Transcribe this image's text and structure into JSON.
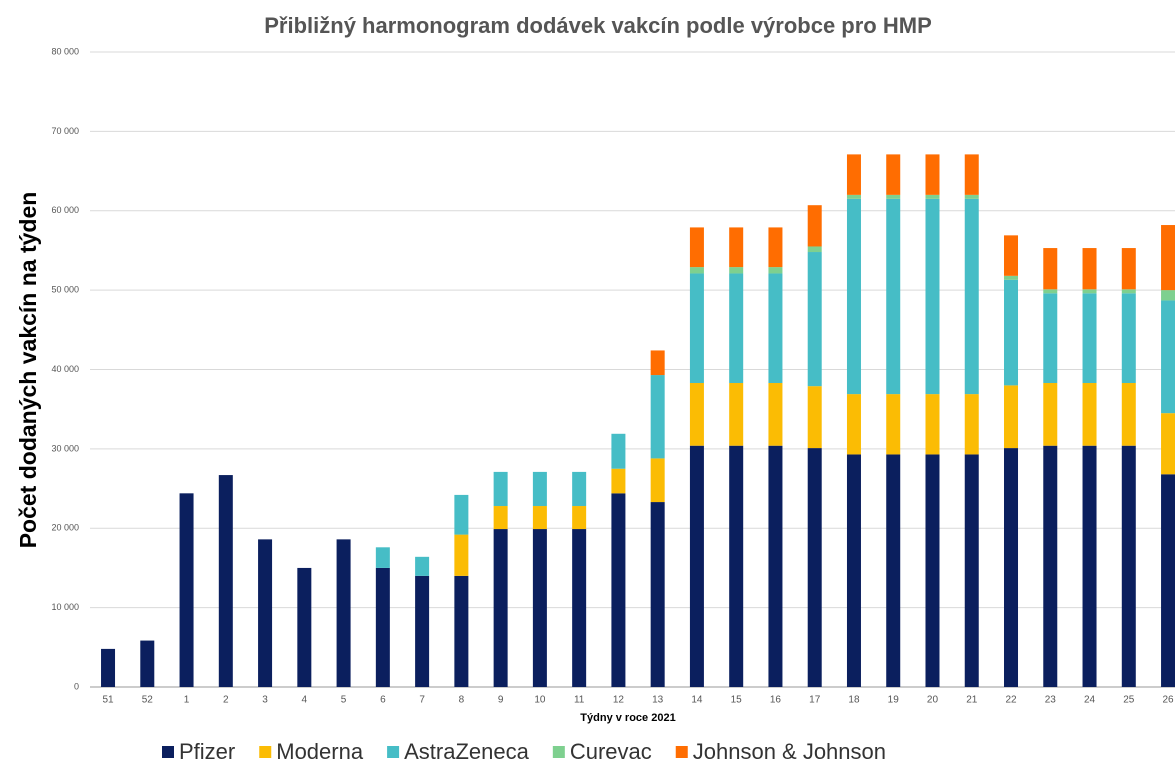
{
  "chart_data": {
    "type": "stacked_bar",
    "title": "Přibližný harmonogram dodávek vakcín podle výrobce pro HMP",
    "x_label": "Týdny v roce 2021",
    "y_label": "Počet dodaných vakcín na týden",
    "categories": [
      "51",
      "52",
      "1",
      "2",
      "3",
      "4",
      "5",
      "6",
      "7",
      "8",
      "9",
      "10",
      "11",
      "12",
      "13",
      "14",
      "15",
      "16",
      "17",
      "18",
      "19",
      "20",
      "21",
      "22",
      "23",
      "24",
      "25",
      "26"
    ],
    "series": [
      {
        "name": "Pfizer",
        "color": "#0b1f5e",
        "values": [
          4800,
          5850,
          24400,
          26700,
          18600,
          15000,
          18600,
          15000,
          14000,
          14000,
          19900,
          19900,
          19900,
          24400,
          23300,
          30400,
          30400,
          30400,
          30100,
          29300,
          29300,
          29300,
          29300,
          30100,
          30400,
          30400,
          30400,
          26800
        ]
      },
      {
        "name": "Moderna",
        "color": "#fbbc04",
        "values": [
          0,
          0,
          0,
          0,
          0,
          0,
          0,
          0,
          0,
          5200,
          2900,
          2900,
          2900,
          3100,
          5500,
          7900,
          7900,
          7900,
          7800,
          7600,
          7600,
          7600,
          7600,
          7900,
          7900,
          7900,
          7900,
          7700
        ]
      },
      {
        "name": "AstraZeneca",
        "color": "#46bdc6",
        "values": [
          0,
          0,
          0,
          0,
          0,
          0,
          0,
          2600,
          2400,
          5000,
          4300,
          4300,
          4300,
          4400,
          10500,
          13800,
          13800,
          13800,
          16900,
          24600,
          24600,
          24600,
          24600,
          13300,
          11300,
          11300,
          11300,
          14200
        ]
      },
      {
        "name": "Curevac",
        "color": "#7ed08f",
        "values": [
          0,
          0,
          0,
          0,
          0,
          0,
          0,
          0,
          0,
          0,
          0,
          0,
          0,
          0,
          0,
          800,
          800,
          800,
          700,
          500,
          500,
          500,
          500,
          500,
          500,
          500,
          500,
          1300
        ]
      },
      {
        "name": "Johnson & Johnson",
        "color": "#ff6d01",
        "values": [
          0,
          0,
          0,
          0,
          0,
          0,
          0,
          0,
          0,
          0,
          0,
          0,
          0,
          0,
          3100,
          5000,
          5000,
          5000,
          5200,
          5100,
          5100,
          5100,
          5100,
          5100,
          5200,
          5200,
          5200,
          8200
        ]
      }
    ],
    "ylim": [
      0,
      80000
    ],
    "yticks": [
      0,
      {
        "value": 10000,
        "label": "10 000"
      },
      {
        "value": 20000,
        "label": "20 000"
      },
      {
        "value": 30000,
        "label": "30 000"
      },
      {
        "value": 40000,
        "label": "40 000"
      },
      {
        "value": 50000,
        "label": "50 000"
      },
      {
        "value": 60000,
        "label": "60 000"
      },
      {
        "value": 70000,
        "label": "70 000"
      },
      {
        "value": 80000,
        "label": "80 000"
      }
    ],
    "grid": true,
    "legend": "bottom"
  }
}
